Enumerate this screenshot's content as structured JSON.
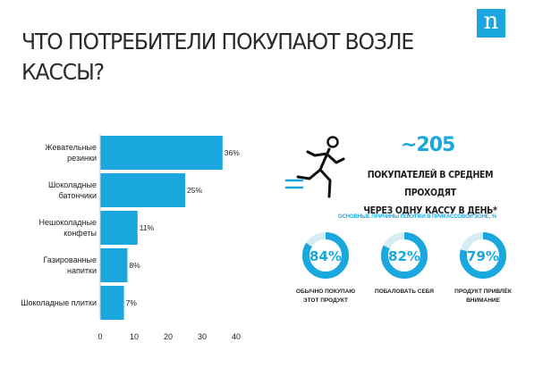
{
  "title": "ЧТО ПОТРЕБИТЕЛИ ПОКУПАЮТ ВОЗЛЕ\nКАССЫ?",
  "logo": "n",
  "colors": {
    "accent": "#1aa7dd",
    "ring_track": "#d8ecf4"
  },
  "chart_data": {
    "type": "bar",
    "orientation": "horizontal",
    "categories": [
      "Жевательные\nрезинки",
      "Шоколадные\nбатончики",
      "Нешоколадные\nконфеты",
      "Газированные\nнапитки",
      "Шоколадные плитки"
    ],
    "values": [
      36,
      25,
      11,
      8,
      7
    ],
    "value_labels": [
      "36%",
      "25%",
      "11%",
      "8%",
      "7%"
    ],
    "xlim": [
      0,
      40
    ],
    "xticks": [
      0,
      10,
      20,
      30,
      40
    ],
    "color": "#1aa7dd",
    "grid": false
  },
  "stat": {
    "number": "~205",
    "text": "ПОКУПАТЕЛЕЙ В СРЕДНЕМ ПРОХОДЯТ\nЧЕРЕЗ ОДНУ КАССУ В ДЕНЬ*",
    "icon": "running-person-icon"
  },
  "reasons": {
    "title": "ОСНОВНЫЕ ПРИЧИНЫ ПОКУПКИ В ПРИКАССОВОЙ ЗОНЕ, %",
    "items": [
      {
        "value": 84,
        "label": "84%",
        "caption": "ОБЫЧНО ПОКУПАЮ\nЭТОТ ПРОДУКТ"
      },
      {
        "value": 82,
        "label": "82%",
        "caption": "ПОБАЛОВАТЬ СЕБЯ"
      },
      {
        "value": 79,
        "label": "79%",
        "caption": "ПРОДУКТ ПРИВЛЁК\nВНИМАНИЕ"
      }
    ]
  }
}
